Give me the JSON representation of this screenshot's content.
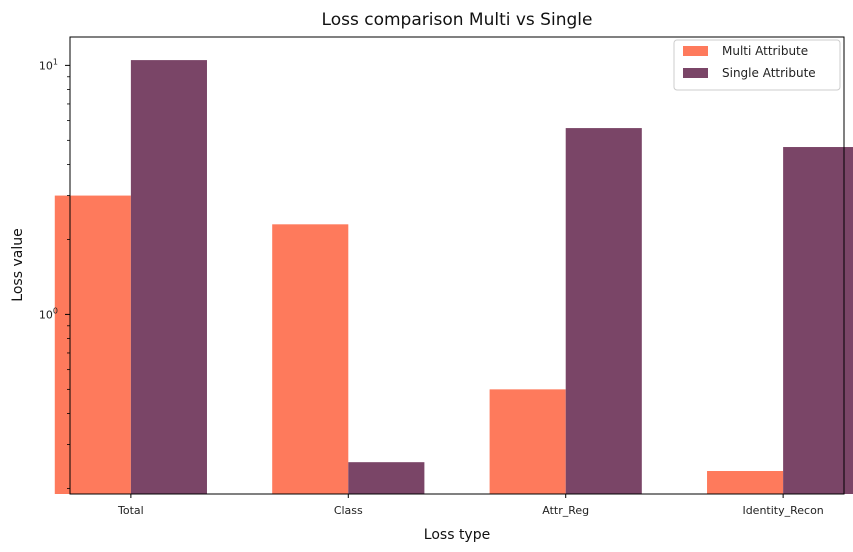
{
  "colors": {
    "multi": "#fe7a5c",
    "single": "#7a4567",
    "axis": "#000000",
    "background": "#ffffff"
  },
  "chart_data": {
    "type": "bar",
    "title": "Loss comparison Multi vs Single",
    "xlabel": "Loss type",
    "ylabel": "Loss value",
    "yscale": "log",
    "ylim": [
      0.19,
      13
    ],
    "y_major_ticks": [
      1,
      10
    ],
    "y_tick_labels": [
      "10^0",
      "10^1"
    ],
    "categories": [
      "Total",
      "Class",
      "Attr_Reg",
      "Identity_Recon"
    ],
    "series": [
      {
        "name": "Multi Attribute",
        "color": "#fe7a5c",
        "values": [
          3.0,
          2.3,
          0.5,
          0.235
        ]
      },
      {
        "name": "Single Attribute",
        "color": "#7a4567",
        "values": [
          10.5,
          0.255,
          5.6,
          4.7
        ]
      }
    ],
    "legend": "top-right",
    "grid": false
  }
}
